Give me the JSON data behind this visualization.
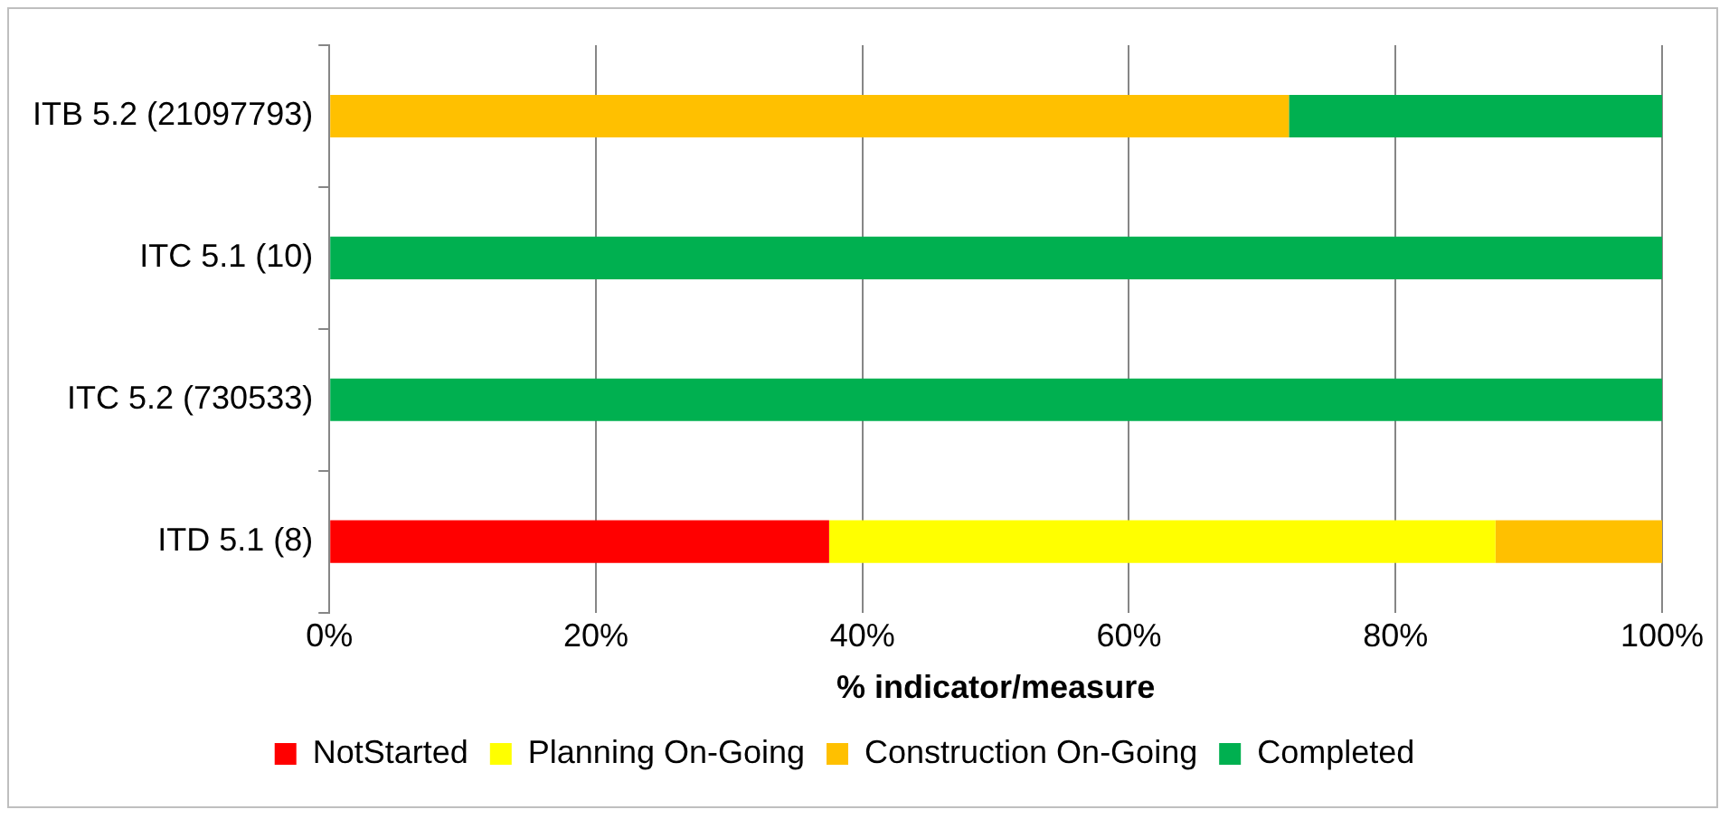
{
  "chart_data": {
    "type": "bar",
    "orientation": "horizontal",
    "stacked": true,
    "xlabel": "% indicator/measure",
    "categories": [
      "ITB 5.2 (21097793)",
      "ITC 5.1 (10)",
      "ITC 5.2 (730533)",
      "ITD 5.1 (8)"
    ],
    "series": [
      {
        "name": "NotStarted",
        "color": "#ff0000",
        "values": [
          0,
          0,
          0,
          37.5
        ]
      },
      {
        "name": "Planning On-Going",
        "color": "#ffff00",
        "values": [
          0,
          0,
          0,
          50
        ]
      },
      {
        "name": "Construction On-Going",
        "color": "#ffc000",
        "values": [
          72,
          0,
          0,
          12.5
        ]
      },
      {
        "name": "Completed",
        "color": "#00b050",
        "values": [
          28,
          100,
          100,
          0
        ]
      }
    ],
    "xlim": [
      0,
      100
    ],
    "xticks": [
      {
        "value": 0,
        "label": "0%"
      },
      {
        "value": 20,
        "label": "20%"
      },
      {
        "value": 40,
        "label": "40%"
      },
      {
        "value": 60,
        "label": "60%"
      },
      {
        "value": 80,
        "label": "80%"
      },
      {
        "value": 100,
        "label": "100%"
      }
    ],
    "grid": "x",
    "legend": "bottom"
  }
}
